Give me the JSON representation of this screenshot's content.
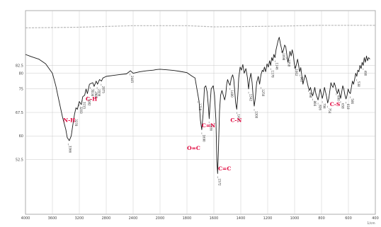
{
  "chart_data": {
    "type": "line",
    "title": "",
    "xlabel": "1/cm",
    "ylabel": "",
    "x_reversed": true,
    "xlim": [
      4000,
      400
    ],
    "ylim": [
      35,
      100
    ],
    "grid": true,
    "x_ticks": [
      "4000",
      "3600",
      "3200",
      "2800",
      "2400",
      "2000",
      "1800",
      "1600",
      "1400",
      "1200",
      "1000",
      "800",
      "600",
      "400"
    ],
    "y_ticks": [
      {
        "label": "82.5",
        "value": 82.5
      },
      {
        "label": "80",
        "value": 80
      },
      {
        "label": "75",
        "value": 75
      },
      {
        "label": "67.5",
        "value": 67.5
      },
      {
        "label": "60",
        "value": 60
      },
      {
        "label": "52.5",
        "value": 52.5
      }
    ],
    "series": [
      {
        "name": "",
        "points": [
          [
            4000,
            86
          ],
          [
            3950,
            85.6
          ],
          [
            3900,
            85.2
          ],
          [
            3800,
            84.5
          ],
          [
            3700,
            83
          ],
          [
            3600,
            80
          ],
          [
            3550,
            76
          ],
          [
            3500,
            71
          ],
          [
            3450,
            66
          ],
          [
            3400,
            62
          ],
          [
            3380,
            59.5
          ],
          [
            3350,
            58.5
          ],
          [
            3320,
            60
          ],
          [
            3300,
            63
          ],
          [
            3270,
            67
          ],
          [
            3250,
            69
          ],
          [
            3230,
            68.5
          ],
          [
            3200,
            71
          ],
          [
            3170,
            70
          ],
          [
            3150,
            72.5
          ],
          [
            3120,
            73
          ],
          [
            3100,
            75
          ],
          [
            3080,
            73.5
          ],
          [
            3050,
            76.5
          ],
          [
            3000,
            77
          ],
          [
            2980,
            75.8
          ],
          [
            2950,
            77.5
          ],
          [
            2930,
            76.5
          ],
          [
            2900,
            78
          ],
          [
            2870,
            77.5
          ],
          [
            2850,
            78.5
          ],
          [
            2800,
            79
          ],
          [
            2700,
            79.3
          ],
          [
            2600,
            79.6
          ],
          [
            2500,
            79.8
          ],
          [
            2440,
            80.8
          ],
          [
            2400,
            80
          ],
          [
            2300,
            80.5
          ],
          [
            2200,
            80.8
          ],
          [
            2100,
            81
          ],
          [
            2050,
            81.2
          ],
          [
            2000,
            81.3
          ],
          [
            1950,
            81.1
          ],
          [
            1900,
            80.9
          ],
          [
            1850,
            80.6
          ],
          [
            1800,
            80.2
          ],
          [
            1760,
            79
          ],
          [
            1740,
            78.5
          ],
          [
            1710,
            71
          ],
          [
            1700,
            65
          ],
          [
            1690,
            62
          ],
          [
            1680,
            67
          ],
          [
            1670,
            75.5
          ],
          [
            1660,
            76
          ],
          [
            1650,
            74
          ],
          [
            1640,
            69
          ],
          [
            1635,
            65.5
          ],
          [
            1630,
            69
          ],
          [
            1620,
            75
          ],
          [
            1605,
            76
          ],
          [
            1595,
            73
          ],
          [
            1585,
            65
          ],
          [
            1578,
            52
          ],
          [
            1572,
            48
          ],
          [
            1566,
            56
          ],
          [
            1558,
            68
          ],
          [
            1550,
            73
          ],
          [
            1540,
            74.5
          ],
          [
            1530,
            73
          ],
          [
            1520,
            71.5
          ],
          [
            1512,
            73
          ],
          [
            1505,
            76.5
          ],
          [
            1498,
            78
          ],
          [
            1490,
            77
          ],
          [
            1480,
            76.2
          ],
          [
            1470,
            78.5
          ],
          [
            1460,
            79.5
          ],
          [
            1452,
            78
          ],
          [
            1445,
            74.5
          ],
          [
            1438,
            70.5
          ],
          [
            1430,
            68.5
          ],
          [
            1422,
            73
          ],
          [
            1415,
            78.5
          ],
          [
            1405,
            82
          ],
          [
            1395,
            81
          ],
          [
            1385,
            82.8
          ],
          [
            1375,
            80
          ],
          [
            1362,
            81.5
          ],
          [
            1350,
            78.5
          ],
          [
            1342,
            75
          ],
          [
            1334,
            78
          ],
          [
            1325,
            80
          ],
          [
            1316,
            77
          ],
          [
            1308,
            72.5
          ],
          [
            1300,
            69.5
          ],
          [
            1292,
            72
          ],
          [
            1282,
            77
          ],
          [
            1270,
            79
          ],
          [
            1260,
            76.5
          ],
          [
            1250,
            79.5
          ],
          [
            1240,
            81
          ],
          [
            1232,
            80.5
          ],
          [
            1224,
            82
          ],
          [
            1215,
            80.5
          ],
          [
            1205,
            83
          ],
          [
            1195,
            82
          ],
          [
            1186,
            84
          ],
          [
            1178,
            82.5
          ],
          [
            1170,
            85
          ],
          [
            1162,
            84
          ],
          [
            1154,
            86
          ],
          [
            1146,
            85
          ],
          [
            1138,
            87.5
          ],
          [
            1130,
            89
          ],
          [
            1122,
            90.5
          ],
          [
            1114,
            91.5
          ],
          [
            1106,
            89.5
          ],
          [
            1098,
            88
          ],
          [
            1090,
            86.5
          ],
          [
            1082,
            87.5
          ],
          [
            1074,
            89
          ],
          [
            1066,
            88.5
          ],
          [
            1058,
            86
          ],
          [
            1050,
            83.5
          ],
          [
            1042,
            85
          ],
          [
            1034,
            87
          ],
          [
            1026,
            85.5
          ],
          [
            1018,
            87.5
          ],
          [
            1010,
            86
          ],
          [
            1002,
            83
          ],
          [
            994,
            81.5
          ],
          [
            986,
            83
          ],
          [
            978,
            84.5
          ],
          [
            970,
            82.5
          ],
          [
            962,
            80.5
          ],
          [
            954,
            81.8
          ],
          [
            946,
            79
          ],
          [
            938,
            76.5
          ],
          [
            930,
            78
          ],
          [
            922,
            79.5
          ],
          [
            914,
            78.5
          ],
          [
            906,
            77
          ],
          [
            898,
            75.5
          ],
          [
            890,
            74.5
          ],
          [
            882,
            75.5
          ],
          [
            874,
            74
          ],
          [
            866,
            72.8
          ],
          [
            858,
            74
          ],
          [
            850,
            75.5
          ],
          [
            842,
            73.5
          ],
          [
            834,
            72.5
          ],
          [
            826,
            71.5
          ],
          [
            818,
            73
          ],
          [
            810,
            75
          ],
          [
            802,
            73.5
          ],
          [
            794,
            72
          ],
          [
            786,
            73.5
          ],
          [
            778,
            75.5
          ],
          [
            770,
            74
          ],
          [
            762,
            72.5
          ],
          [
            754,
            70.5
          ],
          [
            746,
            72
          ],
          [
            738,
            74.5
          ],
          [
            730,
            77
          ],
          [
            722,
            76
          ],
          [
            714,
            75.5
          ],
          [
            706,
            77
          ],
          [
            698,
            76
          ],
          [
            690,
            74.5
          ],
          [
            682,
            73.5
          ],
          [
            674,
            75
          ],
          [
            666,
            73.5
          ],
          [
            658,
            72
          ],
          [
            650,
            74
          ],
          [
            642,
            76
          ],
          [
            634,
            75
          ],
          [
            626,
            73
          ],
          [
            618,
            71.8
          ],
          [
            610,
            73
          ],
          [
            602,
            75
          ],
          [
            594,
            74
          ],
          [
            586,
            73.5
          ],
          [
            578,
            75.5
          ],
          [
            570,
            77.5
          ],
          [
            562,
            76.5
          ],
          [
            554,
            78
          ],
          [
            546,
            80
          ],
          [
            538,
            79
          ],
          [
            530,
            81
          ],
          [
            522,
            80.5
          ],
          [
            514,
            82.5
          ],
          [
            506,
            81.5
          ],
          [
            498,
            83.5
          ],
          [
            490,
            82.5
          ],
          [
            482,
            85
          ],
          [
            474,
            83.5
          ],
          [
            466,
            85.5
          ],
          [
            458,
            84
          ],
          [
            450,
            85
          ],
          [
            440,
            84.5
          ]
        ]
      }
    ],
    "reference_line": [
      [
        4000,
        94.5
      ],
      [
        3200,
        94.7
      ],
      [
        2400,
        95.2
      ],
      [
        1800,
        95.2
      ],
      [
        1600,
        94.8
      ],
      [
        1200,
        95
      ],
      [
        800,
        95.3
      ],
      [
        400,
        95.3
      ]
    ],
    "peak_labels": [
      {
        "text": "3366",
        "x": 3366,
        "y": 58.5
      },
      {
        "text": "3278",
        "x": 3278,
        "y": 67
      },
      {
        "text": "3203",
        "x": 3203,
        "y": 71
      },
      {
        "text": "3155",
        "x": 3155,
        "y": 72.5
      },
      {
        "text": "3082",
        "x": 3082,
        "y": 73.5
      },
      {
        "text": "3036",
        "x": 3036,
        "y": 76.5
      },
      {
        "text": "2985",
        "x": 2985,
        "y": 75.8
      },
      {
        "text": "2936",
        "x": 2936,
        "y": 76.5
      },
      {
        "text": "2875",
        "x": 2875,
        "y": 77.5
      },
      {
        "text": "2445",
        "x": 2445,
        "y": 80.8
      },
      {
        "text": "1718",
        "x": 1718,
        "y": 72
      },
      {
        "text": "1690",
        "x": 1690,
        "y": 62
      },
      {
        "text": "1636",
        "x": 1636,
        "y": 65.5
      },
      {
        "text": "1572",
        "x": 1572,
        "y": 48
      },
      {
        "text": "1480",
        "x": 1480,
        "y": 76.2
      },
      {
        "text": "1430",
        "x": 1430,
        "y": 68.5
      },
      {
        "text": "1342",
        "x": 1342,
        "y": 75
      },
      {
        "text": "1300",
        "x": 1300,
        "y": 69.5
      },
      {
        "text": "1250",
        "x": 1250,
        "y": 76.5
      },
      {
        "text": "1178",
        "x": 1178,
        "y": 82.5
      },
      {
        "text": "1146",
        "x": 1146,
        "y": 85
      },
      {
        "text": "1098",
        "x": 1098,
        "y": 88
      },
      {
        "text": "1058",
        "x": 1058,
        "y": 86
      },
      {
        "text": "1002",
        "x": 1002,
        "y": 83
      },
      {
        "text": "962",
        "x": 962,
        "y": 80.5
      },
      {
        "text": "898",
        "x": 898,
        "y": 75.5
      },
      {
        "text": "866",
        "x": 866,
        "y": 72.8
      },
      {
        "text": "826",
        "x": 826,
        "y": 71.5
      },
      {
        "text": "794",
        "x": 794,
        "y": 72
      },
      {
        "text": "754",
        "x": 754,
        "y": 70.5
      },
      {
        "text": "690",
        "x": 690,
        "y": 74.5
      },
      {
        "text": "658",
        "x": 658,
        "y": 72
      },
      {
        "text": "618",
        "x": 618,
        "y": 71.8
      },
      {
        "text": "586",
        "x": 586,
        "y": 73.5
      },
      {
        "text": "538",
        "x": 538,
        "y": 79
      },
      {
        "text": "490",
        "x": 490,
        "y": 82.5
      }
    ],
    "annotations": [
      {
        "text": "C-H",
        "x": 3020,
        "y": 71.2
      },
      {
        "text": "N-H",
        "x": 3350,
        "y": 64.5
      },
      {
        "text": "C=N",
        "x": 1640,
        "y": 62.8
      },
      {
        "text": "O=C",
        "x": 1750,
        "y": 55.5
      },
      {
        "text": "C=C",
        "x": 1520,
        "y": 49
      },
      {
        "text": "C-N",
        "x": 1435,
        "y": 64.5
      },
      {
        "text": "C-S",
        "x": 700,
        "y": 69.5
      }
    ],
    "colors": {
      "spectrum": "#1a1a1a",
      "reference": "#b8b8b8",
      "grid": "#c9c9c9",
      "annotation": "#e0003a"
    }
  }
}
